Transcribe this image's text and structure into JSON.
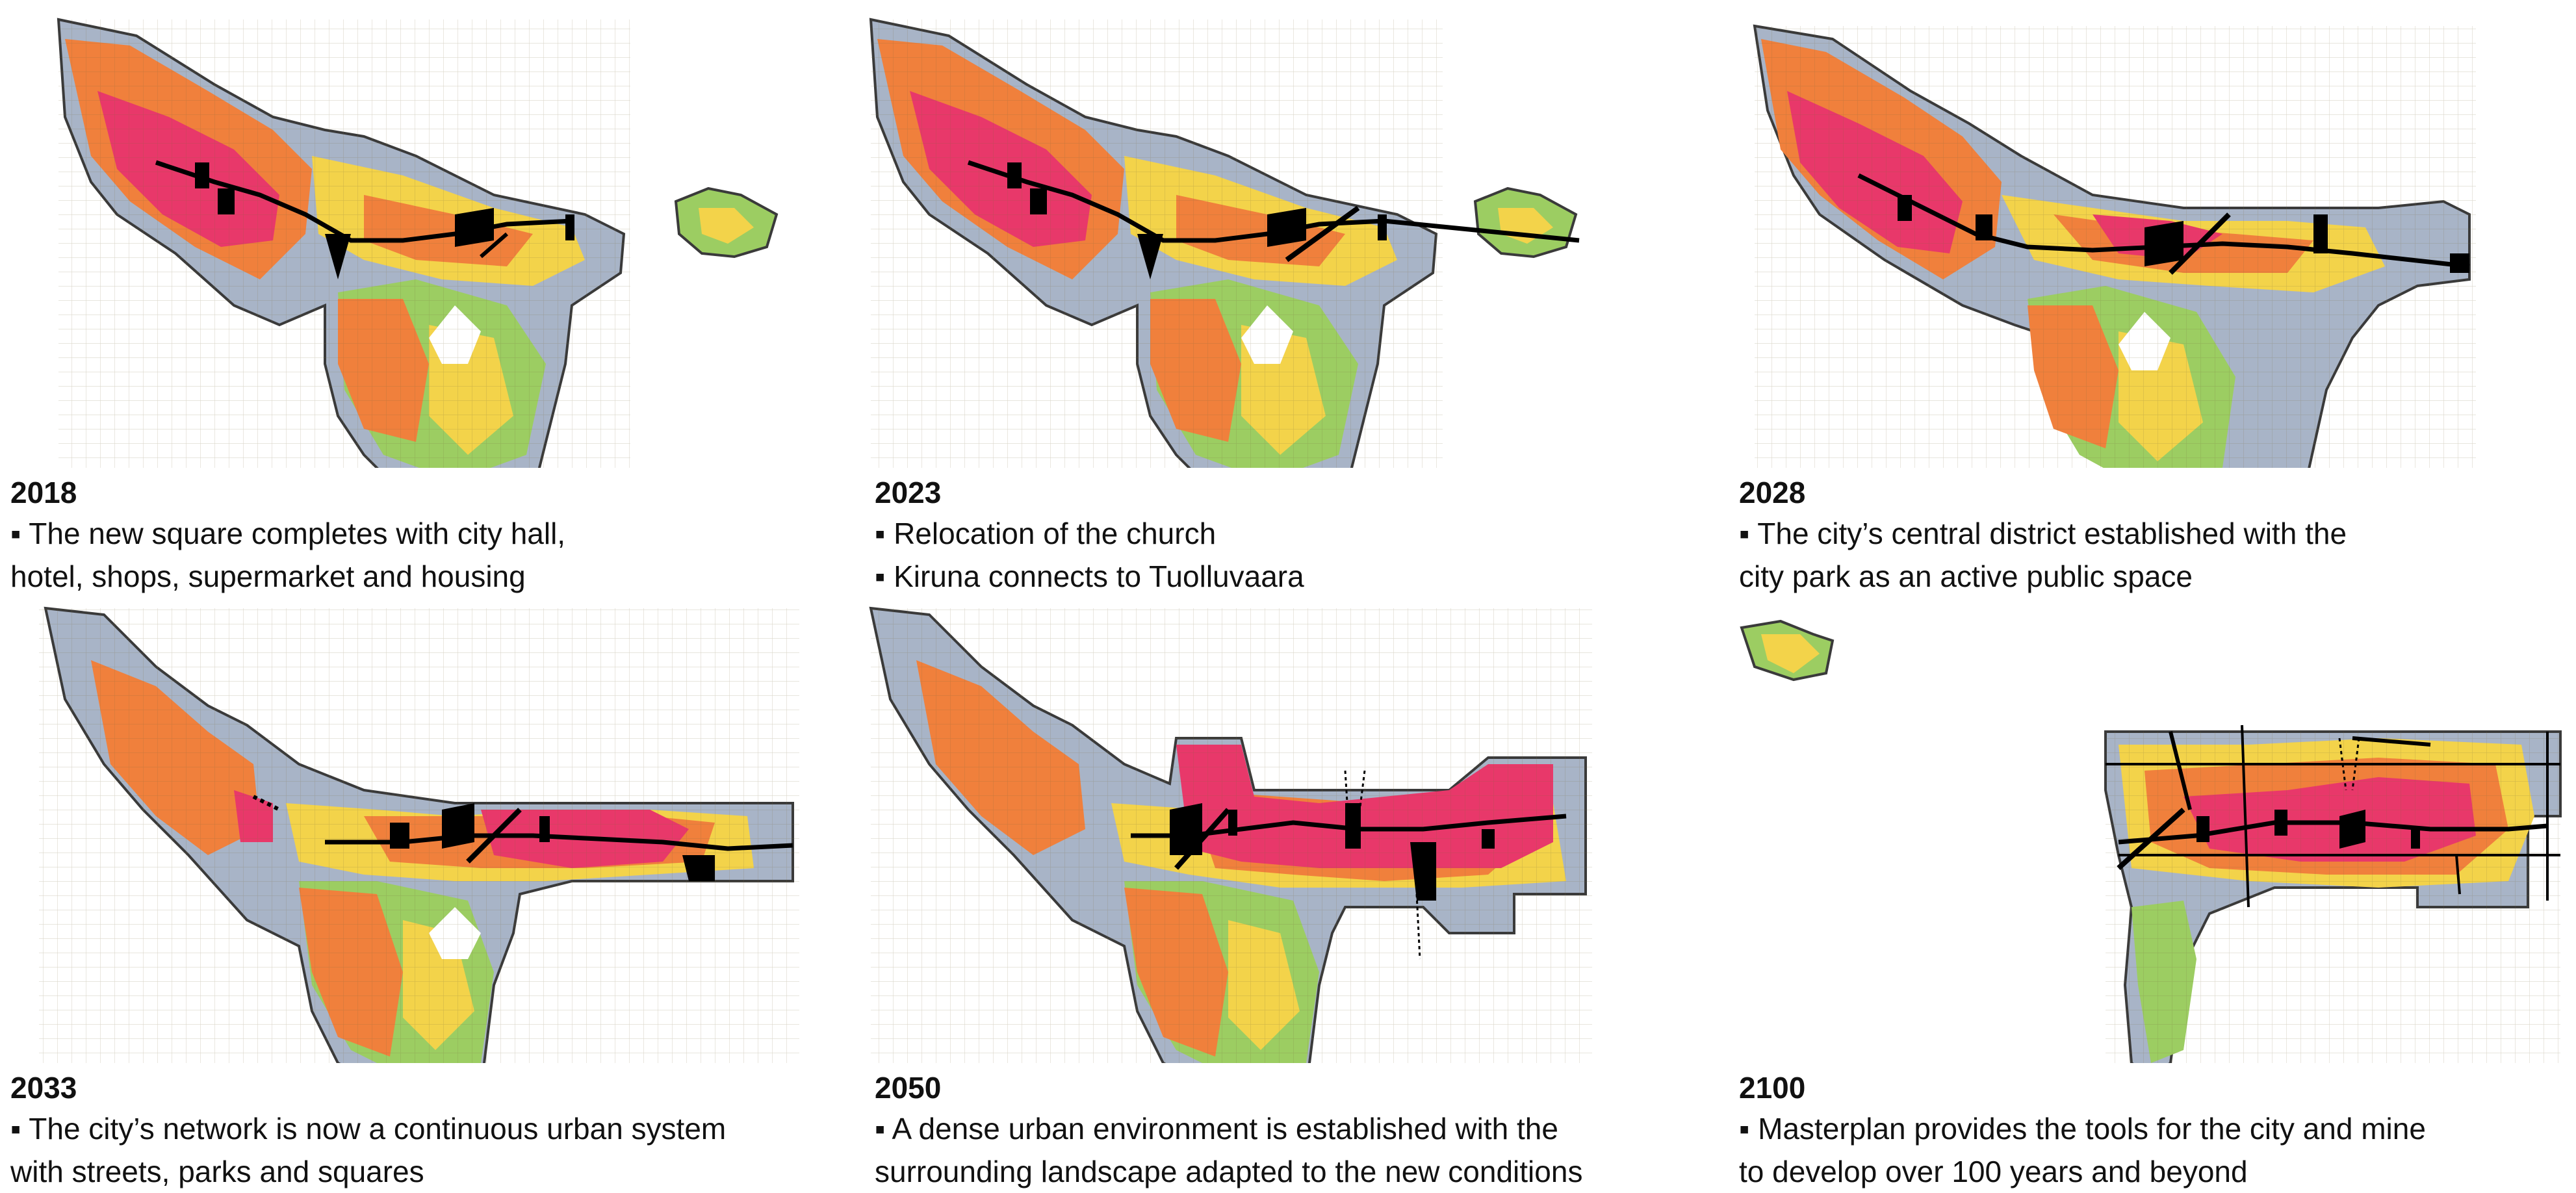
{
  "colors": {
    "outline": "#3a3a3a",
    "route": "#000000",
    "dense": "#e8386a",
    "high": "#f0803c",
    "mid": "#f3d34a",
    "low": "#9ccd62",
    "sparse": "#a8b4c7"
  },
  "panels": [
    {
      "year": "2018",
      "lines": [
        "▪ The new square completes with city hall,",
        "hotel, shops, supermarket and housing"
      ]
    },
    {
      "year": "2023",
      "lines": [
        "▪ Relocation of the church",
        "▪ Kiruna connects to Tuolluvaara"
      ]
    },
    {
      "year": "2028",
      "lines": [
        "▪ The city’s central district established  with the",
        "city park as an active public space"
      ]
    },
    {
      "year": "2033",
      "lines": [
        "▪ The city’s network is now a continuous urban system",
        "with streets, parks and squares"
      ]
    },
    {
      "year": "2050",
      "lines": [
        "▪ A dense urban environment is established with the",
        "surrounding landscape adapted to the new conditions"
      ]
    },
    {
      "year": "2100",
      "lines": [
        "▪ Masterplan provides the tools for the city and mine",
        "to develop over 100 years and beyond"
      ]
    }
  ]
}
